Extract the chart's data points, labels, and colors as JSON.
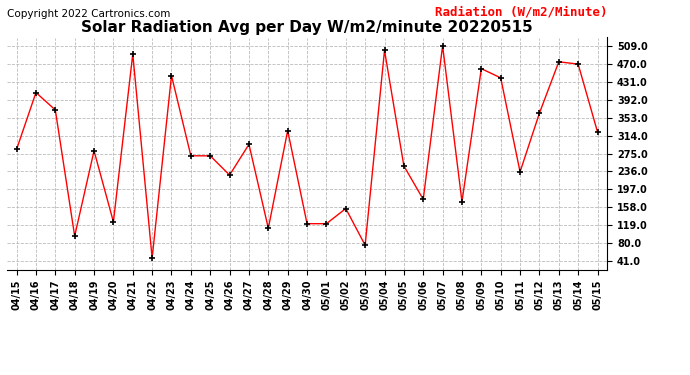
{
  "title": "Solar Radiation Avg per Day W/m2/minute 20220515",
  "copyright": "Copyright 2022 Cartronics.com",
  "legend_label": "Radiation (W/m2/Minute)",
  "dates": [
    "04/15",
    "04/16",
    "04/17",
    "04/18",
    "04/19",
    "04/20",
    "04/21",
    "04/22",
    "04/23",
    "04/24",
    "04/25",
    "04/26",
    "04/27",
    "04/28",
    "04/29",
    "04/30",
    "05/01",
    "05/02",
    "05/03",
    "05/04",
    "05/05",
    "05/06",
    "05/07",
    "05/08",
    "05/09",
    "05/10",
    "05/11",
    "05/12",
    "05/13",
    "05/14",
    "05/15"
  ],
  "values": [
    284,
    408,
    370,
    95,
    281,
    126,
    492,
    47,
    445,
    270,
    270,
    228,
    295,
    112,
    325,
    122,
    122,
    155,
    75,
    500,
    248,
    175,
    510,
    170,
    460,
    440,
    235,
    363,
    475,
    470,
    322
  ],
  "line_color": "red",
  "marker": "+",
  "marker_color": "black",
  "bg_color": "white",
  "grid_color": "#bbbbbb",
  "yticks": [
    41.0,
    80.0,
    119.0,
    158.0,
    197.0,
    236.0,
    275.0,
    314.0,
    353.0,
    392.0,
    431.0,
    470.0,
    509.0
  ],
  "ylim": [
    21,
    528
  ],
  "title_fontsize": 11,
  "tick_fontsize": 7,
  "legend_fontsize": 9,
  "copyright_fontsize": 7.5
}
